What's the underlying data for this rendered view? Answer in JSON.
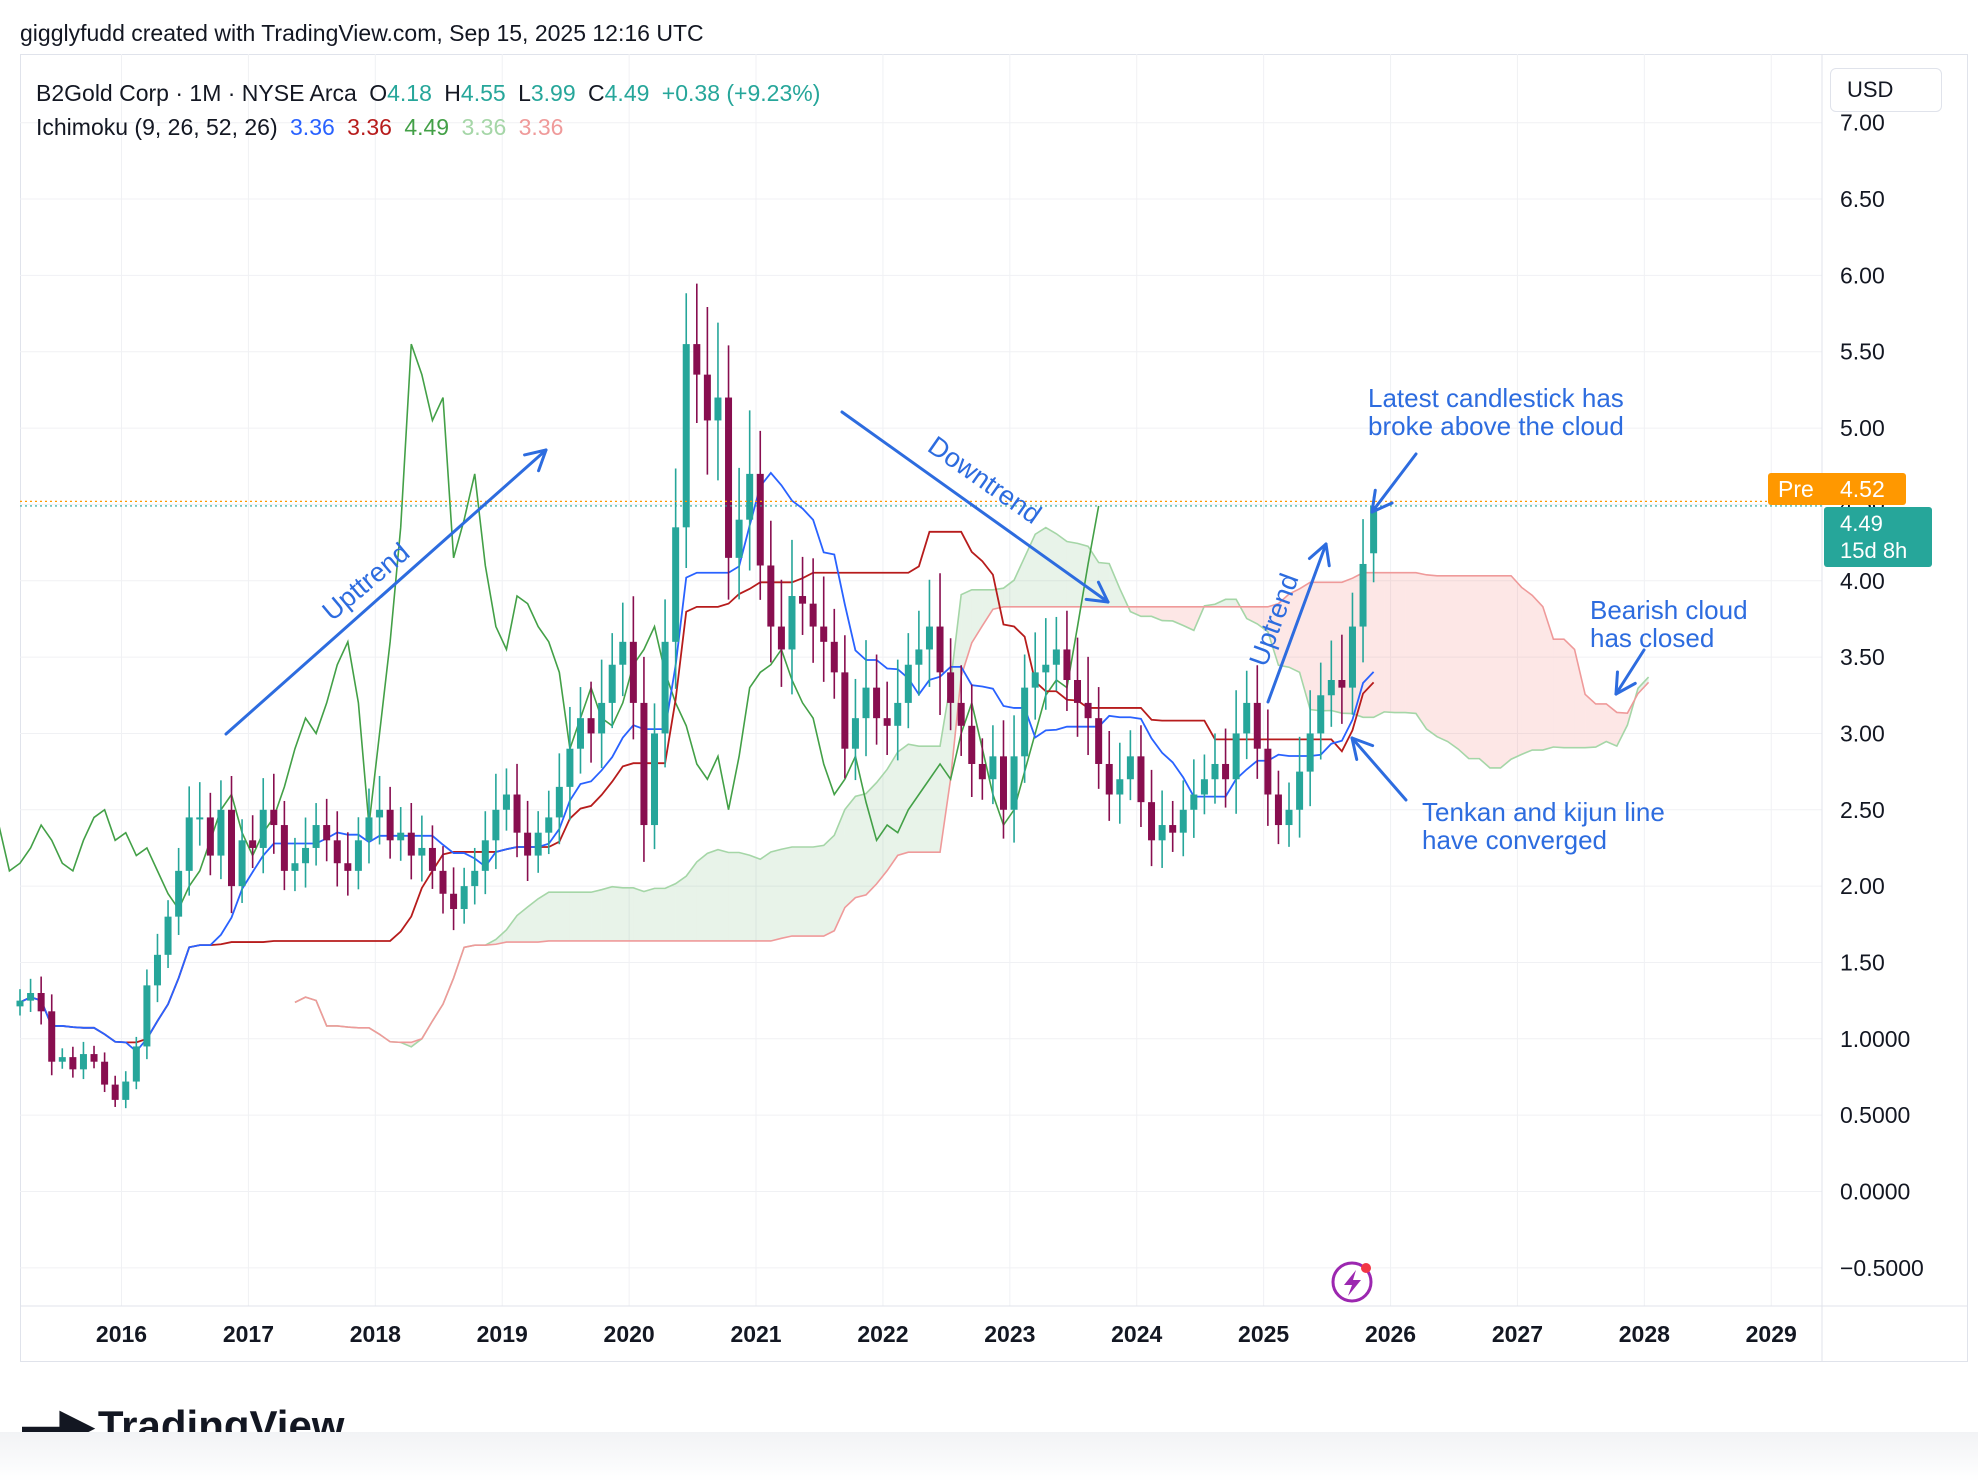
{
  "caption": "gigglyfudd created with TradingView.com, Sep 15, 2025 12:16 UTC",
  "legend": {
    "symbol": "B2Gold Corp · 1M · NYSE Arca",
    "o_label": "O",
    "o_value": "4.18",
    "h_label": "H",
    "h_value": "4.55",
    "l_label": "L",
    "l_value": "3.99",
    "c_label": "C",
    "c_value": "4.49",
    "change": "+0.38 (+9.23%)",
    "indicator": "Ichimoku (9, 26, 52, 26)",
    "ind_values": [
      "3.36",
      "3.36",
      "4.49",
      "3.36",
      "3.36"
    ]
  },
  "currency": "USD",
  "pre_label": "Pre",
  "pre_value": "4.52",
  "last_price": "4.49",
  "countdown": "15d 8h",
  "logo_text": "TradingView",
  "annotations": {
    "uptrend_1": "Upttrend",
    "downtrend": "Downtrend",
    "uptrend_2": "Uptrend",
    "latest_line1": "Latest candlestick has",
    "latest_line2": "broke above the cloud",
    "bearish_line1": "Bearish cloud",
    "bearish_line2": "has closed",
    "tenkan_line1": "Tenkan and kijun line",
    "tenkan_line2": "have converged"
  },
  "colors": {
    "up": "#26a69a",
    "down": "#880e4f",
    "tenkan": "#2962ff",
    "kijun": "#b71c1c",
    "chikou": "#43a047",
    "span_a": "#a5d6a7",
    "span_b": "#ef9a9a",
    "annotation": "#2d6cdf",
    "pre": "#ff9800"
  },
  "chart_data": {
    "type": "candlestick",
    "timeframe": "1M",
    "x_range": [
      2015.2,
      2029.4
    ],
    "ylim": [
      -0.75,
      7.45
    ],
    "y_ticks": [
      "7.00",
      "6.50",
      "6.00",
      "5.50",
      "5.00",
      "4.50",
      "4.00",
      "3.50",
      "3.00",
      "2.50",
      "2.00",
      "1.50",
      "1.0000",
      "0.5000",
      "0.0000",
      "−0.5000"
    ],
    "y_tick_values": [
      7.0,
      6.5,
      6.0,
      5.5,
      5.0,
      4.5,
      4.0,
      3.5,
      3.0,
      2.5,
      2.0,
      1.5,
      1.0,
      0.5,
      0.0,
      -0.5
    ],
    "x_ticks": [
      "2016",
      "2017",
      "2018",
      "2019",
      "2020",
      "2021",
      "2022",
      "2023",
      "2024",
      "2025",
      "2026",
      "2027",
      "2028",
      "2029"
    ],
    "x_tick_values": [
      2016,
      2017,
      2018,
      2019,
      2020,
      2021,
      2022,
      2023,
      2024,
      2025,
      2026,
      2027,
      2028,
      2029
    ],
    "candle_closes": [
      1.25,
      1.3,
      1.18,
      0.85,
      0.88,
      0.8,
      0.9,
      0.85,
      0.7,
      0.6,
      0.72,
      0.95,
      1.35,
      1.55,
      1.8,
      2.1,
      2.45,
      2.45,
      2.2,
      2.5,
      2.0,
      2.3,
      2.25,
      2.5,
      2.4,
      2.1,
      2.15,
      2.25,
      2.4,
      2.3,
      2.15,
      2.1,
      2.3,
      2.45,
      2.5,
      2.3,
      2.35,
      2.2,
      2.25,
      2.1,
      1.95,
      1.85,
      2.0,
      2.1,
      2.3,
      2.5,
      2.6,
      2.35,
      2.2,
      2.35,
      2.45,
      2.65,
      2.9,
      3.1,
      3.0,
      3.2,
      3.45,
      3.6,
      3.2,
      2.4,
      3.0,
      3.6,
      4.35,
      5.55,
      5.35,
      5.05,
      5.2,
      4.15,
      4.4,
      4.7,
      4.1,
      3.7,
      3.55,
      3.9,
      3.85,
      3.7,
      3.6,
      3.4,
      2.9,
      3.1,
      3.3,
      3.1,
      3.05,
      3.2,
      3.45,
      3.55,
      3.7,
      3.4,
      3.2,
      3.05,
      2.8,
      2.7,
      2.85,
      2.5,
      2.85,
      3.3,
      3.4,
      3.45,
      3.55,
      3.35,
      3.2,
      3.1,
      2.8,
      2.6,
      2.7,
      2.85,
      2.55,
      2.3,
      2.4,
      2.35,
      2.5,
      2.6,
      2.7,
      2.8,
      2.7,
      3.0,
      3.2,
      2.9,
      2.6,
      2.4,
      2.5,
      2.75,
      3.0,
      3.25,
      3.35,
      3.3,
      3.7,
      4.11,
      4.49
    ]
  }
}
